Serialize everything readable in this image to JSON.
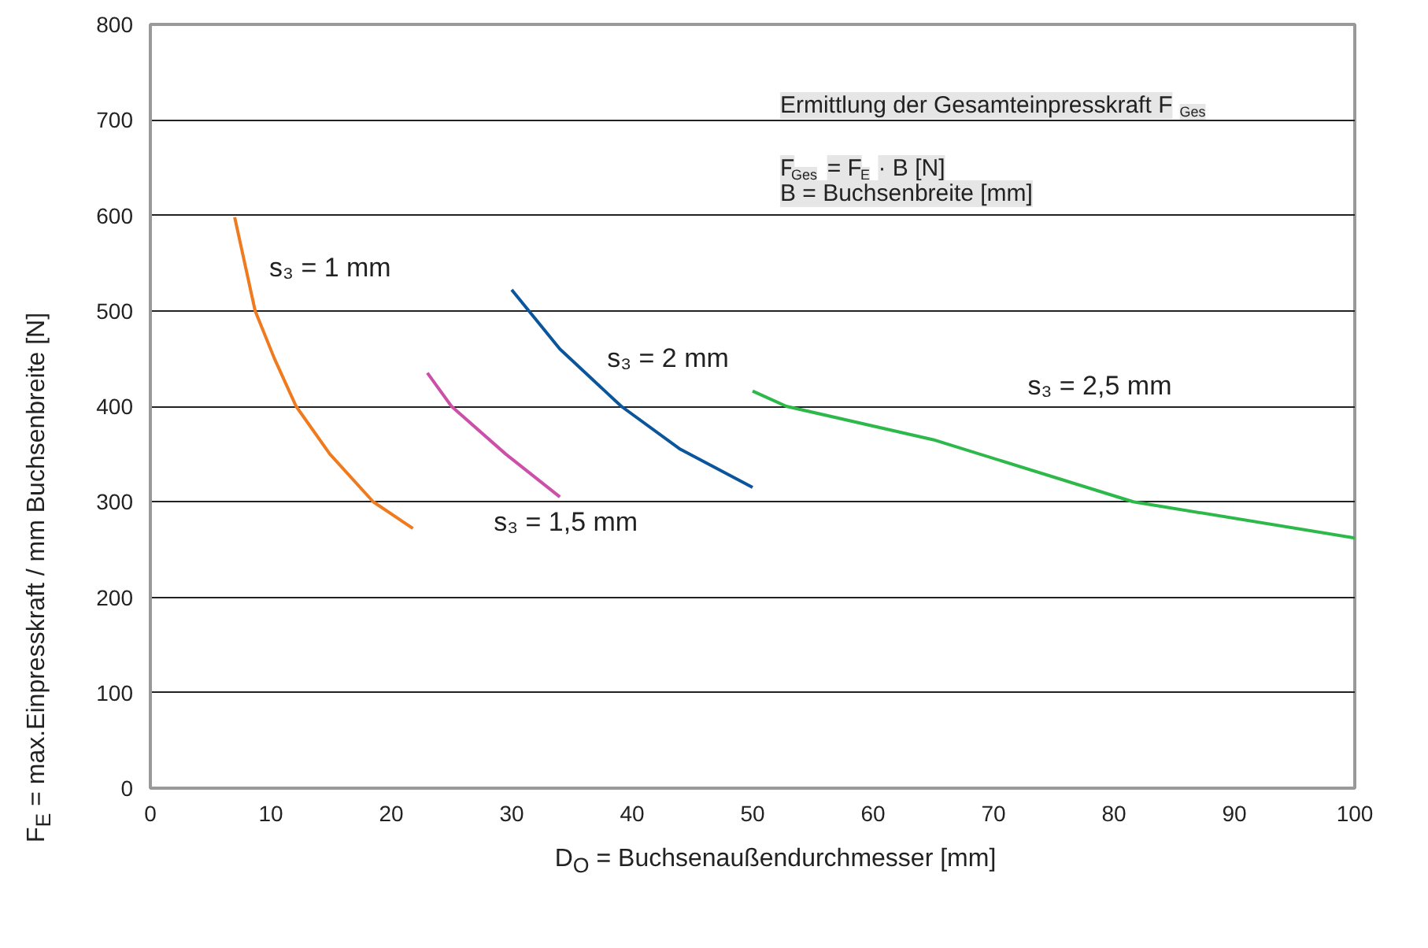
{
  "chart_data": {
    "type": "line",
    "xlabel": "D$_{O}$ = Buchsenaußendurchmesser [mm]",
    "ylabel": "F$_{E}$ = max.Einpresskraft / mm Buchsenbreite [N]",
    "xlim": [
      0,
      100
    ],
    "ylim": [
      0,
      800
    ],
    "xticks": [
      0,
      10,
      20,
      30,
      40,
      50,
      60,
      70,
      80,
      90,
      100
    ],
    "yticks": [
      0,
      100,
      200,
      300,
      400,
      500,
      600,
      700,
      800
    ],
    "grid": "y",
    "line_style": "solid",
    "series": [
      {
        "name": "s₃ = 1 mm",
        "color": "#f07a1e",
        "x": [
          7,
          8.7,
          10.3,
          12.1,
          14.9,
          18.5,
          21.8
        ],
        "values": [
          598,
          500,
          450,
          400,
          350,
          300,
          272
        ]
      },
      {
        "name": "s₃ = 1,5 mm",
        "color": "#cc4fa8",
        "x": [
          23,
          25,
          29.5,
          34
        ],
        "values": [
          435,
          400,
          350,
          305
        ]
      },
      {
        "name": "s₃ = 2 mm",
        "color": "#0b559c",
        "x": [
          30,
          34,
          39.1,
          44,
          50
        ],
        "values": [
          522,
          460,
          400,
          355,
          315
        ]
      },
      {
        "name": "s₃ = 2,5 mm",
        "color": "#2db84a",
        "x": [
          50,
          52.8,
          65,
          81.6,
          100
        ],
        "values": [
          416,
          400,
          365,
          300,
          262
        ]
      }
    ],
    "annotations": [
      "Ermittlung der Gesamteinpresskraft F$_{Ges}$",
      "F$_{Ges}$ = F$_{E}$ · B [N]",
      "B = Buchsenbreite [mm]"
    ]
  }
}
